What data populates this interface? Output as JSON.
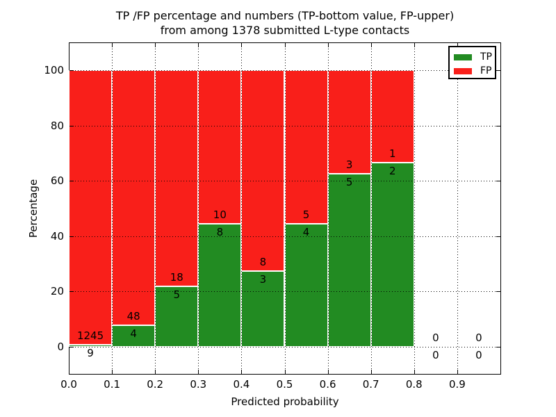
{
  "title": {
    "line1": "TP /FP percentage and numbers (TP-bottom value, FP-upper)",
    "line2": "from among 1378 submitted L-type contacts"
  },
  "axes": {
    "xlabel": "Predicted probability",
    "ylabel": "Percentage",
    "xtick_labels": [
      "0.0",
      "0.1",
      "0.2",
      "0.3",
      "0.4",
      "0.5",
      "0.6",
      "0.7",
      "0.8",
      "0.9"
    ],
    "ytick_labels": [
      "0",
      "20",
      "40",
      "60",
      "80",
      "100"
    ],
    "ytick_values": [
      0,
      20,
      40,
      60,
      80,
      100
    ]
  },
  "legend": {
    "items": [
      {
        "label": "TP",
        "color": "#228b22"
      },
      {
        "label": "FP",
        "color": "#f91f1a"
      }
    ]
  },
  "colors": {
    "tp": "#228b22",
    "fp": "#f91f1a",
    "bar_edge": "#ffffff",
    "grid": "#000000",
    "text": "#000000",
    "background": "#ffffff"
  },
  "chart_data": {
    "type": "bar",
    "stacked": true,
    "normalized_to_percent": true,
    "title": "TP /FP percentage and numbers (TP-bottom value, FP-upper) from among 1378 submitted L-type contacts",
    "total_contacts": 1378,
    "xlabel": "Predicted probability",
    "ylabel": "Percentage",
    "xlim": [
      0.0,
      1.0
    ],
    "ylim": [
      -10,
      110
    ],
    "bin_width": 0.1,
    "grid": true,
    "legend_position": "upper right",
    "series_order": [
      "TP",
      "FP"
    ],
    "bins": [
      {
        "range": [
          0.0,
          0.1
        ],
        "tp": 9,
        "fp": 1245
      },
      {
        "range": [
          0.1,
          0.2
        ],
        "tp": 4,
        "fp": 48
      },
      {
        "range": [
          0.2,
          0.3
        ],
        "tp": 5,
        "fp": 18
      },
      {
        "range": [
          0.3,
          0.4
        ],
        "tp": 8,
        "fp": 10
      },
      {
        "range": [
          0.4,
          0.5
        ],
        "tp": 3,
        "fp": 8
      },
      {
        "range": [
          0.5,
          0.6
        ],
        "tp": 4,
        "fp": 5
      },
      {
        "range": [
          0.6,
          0.7
        ],
        "tp": 5,
        "fp": 3
      },
      {
        "range": [
          0.7,
          0.8
        ],
        "tp": 2,
        "fp": 1
      },
      {
        "range": [
          0.8,
          0.9
        ],
        "tp": 0,
        "fp": 0
      },
      {
        "range": [
          0.9,
          1.0
        ],
        "tp": 0,
        "fp": 0
      }
    ]
  }
}
